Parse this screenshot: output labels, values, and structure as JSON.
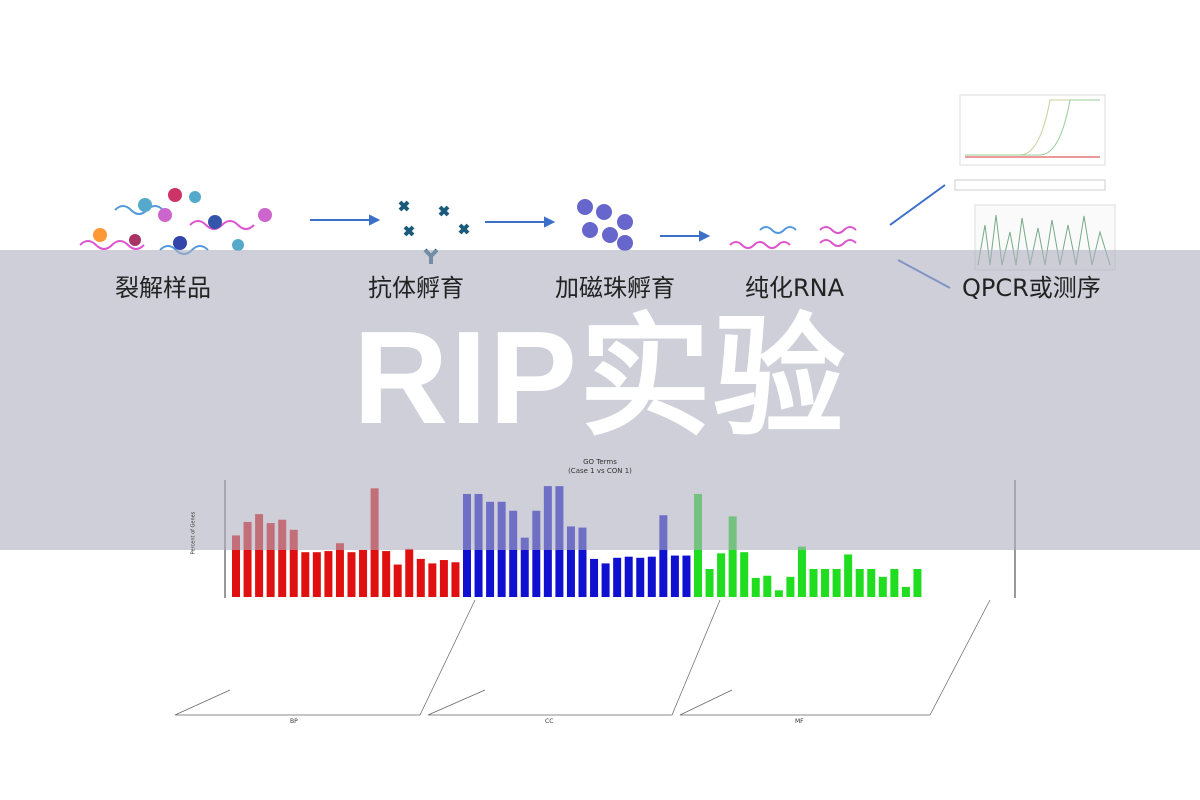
{
  "steps": [
    "裂解样品",
    "抗体孵育",
    "加磁珠孵育",
    "纯化RNA",
    "QPCR或测序"
  ],
  "title": "RIP实验",
  "chart_data": {
    "type": "bar",
    "title": "GO Terms",
    "subtitle": "(Case 1 vs CON 1)",
    "ylabel": "Percent of Genes",
    "ylim": [
      0,
      100
    ],
    "groups": [
      {
        "name": "BP",
        "color": "#e01010",
        "values": [
          55,
          67,
          74,
          66,
          69,
          60,
          40,
          40,
          41,
          48,
          40,
          42,
          97,
          41,
          29,
          43,
          34,
          30,
          33,
          31
        ]
      },
      {
        "name": "CC",
        "color": "#1010d0",
        "values": [
          92,
          92,
          85,
          85,
          77,
          53,
          77,
          99,
          99,
          63,
          62,
          34,
          30,
          35,
          36,
          35,
          36,
          73,
          37,
          37
        ]
      },
      {
        "name": "MF",
        "color": "#20dd20",
        "values": [
          92,
          25,
          39,
          72,
          40,
          17,
          19,
          6,
          18,
          45,
          25,
          25,
          25,
          38,
          25,
          25,
          18,
          25,
          9,
          25
        ]
      }
    ]
  },
  "colors": {
    "band": "#c8c8d4",
    "arrow": "#3b6fc8"
  }
}
